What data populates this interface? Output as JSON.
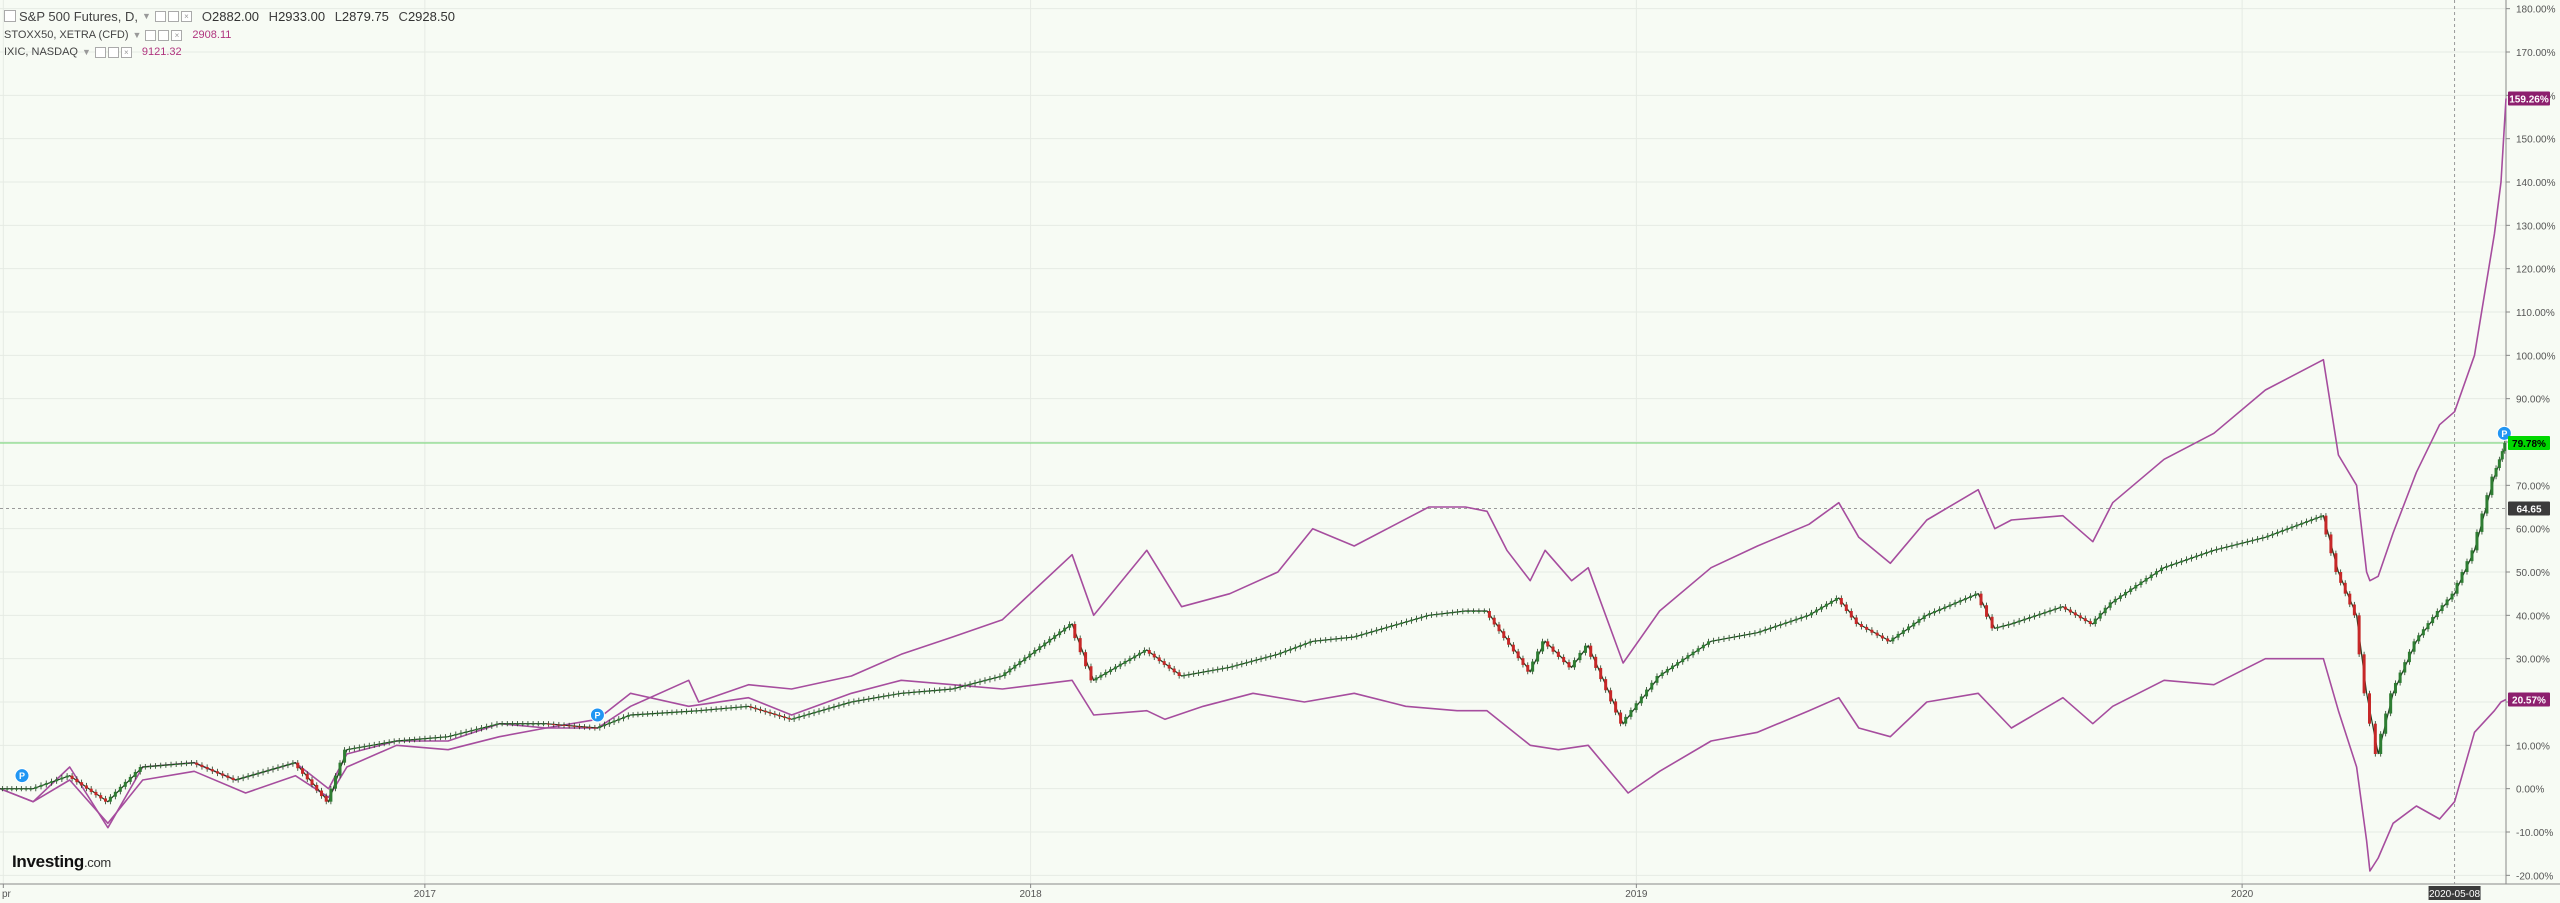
{
  "legend": {
    "main_symbol": "S&P 500 Futures, D,",
    "ohlc": [
      {
        "k": "O",
        "v": "2882.00"
      },
      {
        "k": "H",
        "v": "2933.00"
      },
      {
        "k": "L",
        "v": "2879.75"
      },
      {
        "k": "C",
        "v": "2928.50"
      }
    ],
    "series2_symbol": "STOXX50, XETRA (CFD)",
    "series2_value": "2908.11",
    "series3_symbol": "IXIC, NASDAQ",
    "series3_value": "9121.32"
  },
  "logo": {
    "main": "Investing",
    "suffix": ".com"
  },
  "colors": {
    "background": "#f7fbf4",
    "nasdaq_line": "#a64d9e",
    "stoxx_line": "#a64d9e",
    "candle_up": "#2e7d32",
    "candle_down": "#c62828",
    "spx_level_line": "#6fd66f",
    "nasdaq_badge": "#8d1f6e",
    "stoxx_badge": "#8d1f6e",
    "spx_badge": "#00d800",
    "crosshair_badge": "#3b3b3b"
  },
  "chart_data": {
    "type": "line",
    "title": "",
    "xlabel": "",
    "ylabel": "",
    "ylim": [
      -22,
      182
    ],
    "y_ticks": [
      "180.00%",
      "170.00%",
      "160.00%",
      "150.00%",
      "140.00%",
      "130.00%",
      "120.00%",
      "110.00%",
      "100.00%",
      "90.00%",
      "80.00%",
      "70.00%",
      "60.00%",
      "50.00%",
      "40.00%",
      "30.00%",
      "20.00%",
      "10.00%",
      "0.00%",
      "-10.00%",
      "-20.00%"
    ],
    "y_tick_values": [
      180,
      170,
      160,
      150,
      140,
      130,
      120,
      110,
      100,
      90,
      80,
      70,
      60,
      50,
      40,
      30,
      20,
      10,
      0,
      -10,
      -20
    ],
    "x_range": [
      "2016-04-20",
      "2020-06-08"
    ],
    "x_ticks": [
      {
        "label": "pr",
        "date": "2016-04-22"
      },
      {
        "label": "2017",
        "date": "2017-01-01"
      },
      {
        "label": "2018",
        "date": "2018-01-01"
      },
      {
        "label": "2019",
        "date": "2019-01-01"
      },
      {
        "label": "2020",
        "date": "2020-01-01"
      }
    ],
    "crosshair": {
      "date": "2020-05-08",
      "date_label": "2020-05-08",
      "value": 64.65,
      "value_label": "64.65"
    },
    "series": [
      {
        "name": "IXIC, NASDAQ",
        "style": "line",
        "end_label": "159.26%",
        "points": [
          [
            "2016-04-20",
            0
          ],
          [
            "2016-05-10",
            -3
          ],
          [
            "2016-06-01",
            5
          ],
          [
            "2016-06-24",
            -9
          ],
          [
            "2016-07-15",
            5
          ],
          [
            "2016-08-15",
            6
          ],
          [
            "2016-09-09",
            2
          ],
          [
            "2016-10-15",
            6
          ],
          [
            "2016-11-04",
            0
          ],
          [
            "2016-11-15",
            8
          ],
          [
            "2016-12-15",
            11
          ],
          [
            "2017-01-15",
            11
          ],
          [
            "2017-02-15",
            15
          ],
          [
            "2017-03-15",
            14
          ],
          [
            "2017-04-15",
            14
          ],
          [
            "2017-05-05",
            19
          ],
          [
            "2017-06-09",
            25
          ],
          [
            "2017-06-15",
            20
          ],
          [
            "2017-07-15",
            24
          ],
          [
            "2017-08-10",
            23
          ],
          [
            "2017-09-15",
            26
          ],
          [
            "2017-10-15",
            31
          ],
          [
            "2017-11-15",
            35
          ],
          [
            "2017-12-15",
            39
          ],
          [
            "2018-01-26",
            54
          ],
          [
            "2018-02-08",
            40
          ],
          [
            "2018-03-12",
            55
          ],
          [
            "2018-04-02",
            42
          ],
          [
            "2018-05-01",
            45
          ],
          [
            "2018-05-30",
            50
          ],
          [
            "2018-06-20",
            60
          ],
          [
            "2018-07-15",
            56
          ],
          [
            "2018-08-29",
            65
          ],
          [
            "2018-09-20",
            65
          ],
          [
            "2018-10-03",
            64
          ],
          [
            "2018-10-15",
            55
          ],
          [
            "2018-10-29",
            48
          ],
          [
            "2018-11-07",
            55
          ],
          [
            "2018-11-23",
            48
          ],
          [
            "2018-12-03",
            51
          ],
          [
            "2018-12-24",
            29
          ],
          [
            "2019-01-15",
            41
          ],
          [
            "2019-02-15",
            51
          ],
          [
            "2019-03-15",
            56
          ],
          [
            "2019-04-15",
            61
          ],
          [
            "2019-05-03",
            66
          ],
          [
            "2019-05-15",
            58
          ],
          [
            "2019-06-03",
            52
          ],
          [
            "2019-06-25",
            62
          ],
          [
            "2019-07-26",
            69
          ],
          [
            "2019-08-05",
            60
          ],
          [
            "2019-08-15",
            62
          ],
          [
            "2019-09-15",
            63
          ],
          [
            "2019-10-03",
            57
          ],
          [
            "2019-10-15",
            66
          ],
          [
            "2019-11-15",
            76
          ],
          [
            "2019-12-15",
            82
          ],
          [
            "2020-01-15",
            92
          ],
          [
            "2020-02-19",
            99
          ],
          [
            "2020-02-28",
            77
          ],
          [
            "2020-03-10",
            70
          ],
          [
            "2020-03-16",
            50
          ],
          [
            "2020-03-18",
            48
          ],
          [
            "2020-03-23",
            49
          ],
          [
            "2020-04-01",
            59
          ],
          [
            "2020-04-15",
            73
          ],
          [
            "2020-04-29",
            84
          ],
          [
            "2020-05-08",
            87
          ],
          [
            "2020-05-20",
            100
          ],
          [
            "2020-06-01",
            128
          ],
          [
            "2020-06-05",
            140
          ],
          [
            "2020-06-08",
            159.26
          ]
        ]
      },
      {
        "name": "STOXX50, XETRA (CFD)",
        "style": "line",
        "end_label": "20.57%",
        "points": [
          [
            "2016-04-20",
            0
          ],
          [
            "2016-05-10",
            -3
          ],
          [
            "2016-06-01",
            2
          ],
          [
            "2016-06-24",
            -8
          ],
          [
            "2016-07-15",
            2
          ],
          [
            "2016-08-15",
            4
          ],
          [
            "2016-09-15",
            -1
          ],
          [
            "2016-10-15",
            3
          ],
          [
            "2016-11-04",
            -2
          ],
          [
            "2016-11-15",
            5
          ],
          [
            "2016-12-15",
            10
          ],
          [
            "2017-01-15",
            9
          ],
          [
            "2017-02-15",
            12
          ],
          [
            "2017-03-15",
            14
          ],
          [
            "2017-04-15",
            16
          ],
          [
            "2017-05-05",
            22
          ],
          [
            "2017-06-09",
            19
          ],
          [
            "2017-07-15",
            21
          ],
          [
            "2017-08-10",
            17
          ],
          [
            "2017-09-15",
            22
          ],
          [
            "2017-10-15",
            25
          ],
          [
            "2017-11-15",
            24
          ],
          [
            "2017-12-15",
            23
          ],
          [
            "2018-01-26",
            25
          ],
          [
            "2018-02-08",
            17
          ],
          [
            "2018-03-12",
            18
          ],
          [
            "2018-03-23",
            16
          ],
          [
            "2018-04-15",
            19
          ],
          [
            "2018-05-15",
            22
          ],
          [
            "2018-06-15",
            20
          ],
          [
            "2018-07-15",
            22
          ],
          [
            "2018-08-15",
            19
          ],
          [
            "2018-09-15",
            18
          ],
          [
            "2018-10-03",
            18
          ],
          [
            "2018-10-29",
            10
          ],
          [
            "2018-11-15",
            9
          ],
          [
            "2018-12-03",
            10
          ],
          [
            "2018-12-27",
            -1
          ],
          [
            "2019-01-15",
            4
          ],
          [
            "2019-02-15",
            11
          ],
          [
            "2019-03-15",
            13
          ],
          [
            "2019-04-15",
            18
          ],
          [
            "2019-05-03",
            21
          ],
          [
            "2019-05-15",
            14
          ],
          [
            "2019-06-03",
            12
          ],
          [
            "2019-06-25",
            20
          ],
          [
            "2019-07-26",
            22
          ],
          [
            "2019-08-15",
            14
          ],
          [
            "2019-09-15",
            21
          ],
          [
            "2019-10-03",
            15
          ],
          [
            "2019-10-15",
            19
          ],
          [
            "2019-11-15",
            25
          ],
          [
            "2019-12-15",
            24
          ],
          [
            "2020-01-15",
            30
          ],
          [
            "2020-02-19",
            30
          ],
          [
            "2020-02-28",
            18
          ],
          [
            "2020-03-10",
            5
          ],
          [
            "2020-03-16",
            -12
          ],
          [
            "2020-03-18",
            -19
          ],
          [
            "2020-03-23",
            -16
          ],
          [
            "2020-04-01",
            -8
          ],
          [
            "2020-04-15",
            -4
          ],
          [
            "2020-04-29",
            -7
          ],
          [
            "2020-05-08",
            -3
          ],
          [
            "2020-05-20",
            13
          ],
          [
            "2020-06-01",
            18
          ],
          [
            "2020-06-05",
            20
          ],
          [
            "2020-06-08",
            20.57
          ]
        ]
      },
      {
        "name": "S&P 500 Futures, D,",
        "style": "candlestick",
        "end_label": "79.78%",
        "points": [
          [
            "2016-04-20",
            0
          ],
          [
            "2016-05-10",
            0
          ],
          [
            "2016-06-01",
            3
          ],
          [
            "2016-06-24",
            -3
          ],
          [
            "2016-07-15",
            5
          ],
          [
            "2016-08-15",
            6
          ],
          [
            "2016-09-09",
            2
          ],
          [
            "2016-10-15",
            6
          ],
          [
            "2016-11-04",
            -3
          ],
          [
            "2016-11-15",
            9
          ],
          [
            "2016-12-15",
            11
          ],
          [
            "2017-01-15",
            12
          ],
          [
            "2017-02-15",
            15
          ],
          [
            "2017-03-15",
            15
          ],
          [
            "2017-04-15",
            14
          ],
          [
            "2017-05-05",
            17
          ],
          [
            "2017-06-15",
            18
          ],
          [
            "2017-07-15",
            19
          ],
          [
            "2017-08-10",
            16
          ],
          [
            "2017-09-15",
            20
          ],
          [
            "2017-10-15",
            22
          ],
          [
            "2017-11-15",
            23
          ],
          [
            "2017-12-15",
            26
          ],
          [
            "2018-01-26",
            38
          ],
          [
            "2018-02-08",
            25
          ],
          [
            "2018-03-12",
            32
          ],
          [
            "2018-04-02",
            26
          ],
          [
            "2018-05-01",
            28
          ],
          [
            "2018-05-30",
            31
          ],
          [
            "2018-06-20",
            34
          ],
          [
            "2018-07-15",
            35
          ],
          [
            "2018-08-29",
            40
          ],
          [
            "2018-09-20",
            41
          ],
          [
            "2018-10-03",
            41
          ],
          [
            "2018-10-29",
            27
          ],
          [
            "2018-11-07",
            34
          ],
          [
            "2018-11-23",
            28
          ],
          [
            "2018-12-03",
            33
          ],
          [
            "2018-12-24",
            15
          ],
          [
            "2019-01-15",
            26
          ],
          [
            "2019-02-15",
            34
          ],
          [
            "2019-03-15",
            36
          ],
          [
            "2019-04-15",
            40
          ],
          [
            "2019-05-03",
            44
          ],
          [
            "2019-05-15",
            38
          ],
          [
            "2019-06-03",
            34
          ],
          [
            "2019-06-25",
            40
          ],
          [
            "2019-07-26",
            45
          ],
          [
            "2019-08-05",
            37
          ],
          [
            "2019-08-15",
            38
          ],
          [
            "2019-09-15",
            42
          ],
          [
            "2019-10-03",
            38
          ],
          [
            "2019-10-15",
            43
          ],
          [
            "2019-11-15",
            51
          ],
          [
            "2019-12-15",
            55
          ],
          [
            "2020-01-15",
            58
          ],
          [
            "2020-02-19",
            63
          ],
          [
            "2020-02-28",
            50
          ],
          [
            "2020-03-10",
            40
          ],
          [
            "2020-03-16",
            22
          ],
          [
            "2020-03-23",
            8
          ],
          [
            "2020-04-01",
            22
          ],
          [
            "2020-04-15",
            34
          ],
          [
            "2020-04-29",
            41
          ],
          [
            "2020-05-08",
            45
          ],
          [
            "2020-05-20",
            55
          ],
          [
            "2020-06-01",
            72
          ],
          [
            "2020-06-05",
            76
          ],
          [
            "2020-06-08",
            79.78
          ]
        ]
      }
    ],
    "event_markers": [
      {
        "date": "2016-04-20",
        "value": 3,
        "glyph": "P"
      },
      {
        "date": "2017-04-15",
        "value": 17,
        "glyph": "P"
      },
      {
        "date": "2020-06-07",
        "value": 82,
        "glyph": "P"
      }
    ],
    "grid": true,
    "y_axis_side": "right"
  }
}
